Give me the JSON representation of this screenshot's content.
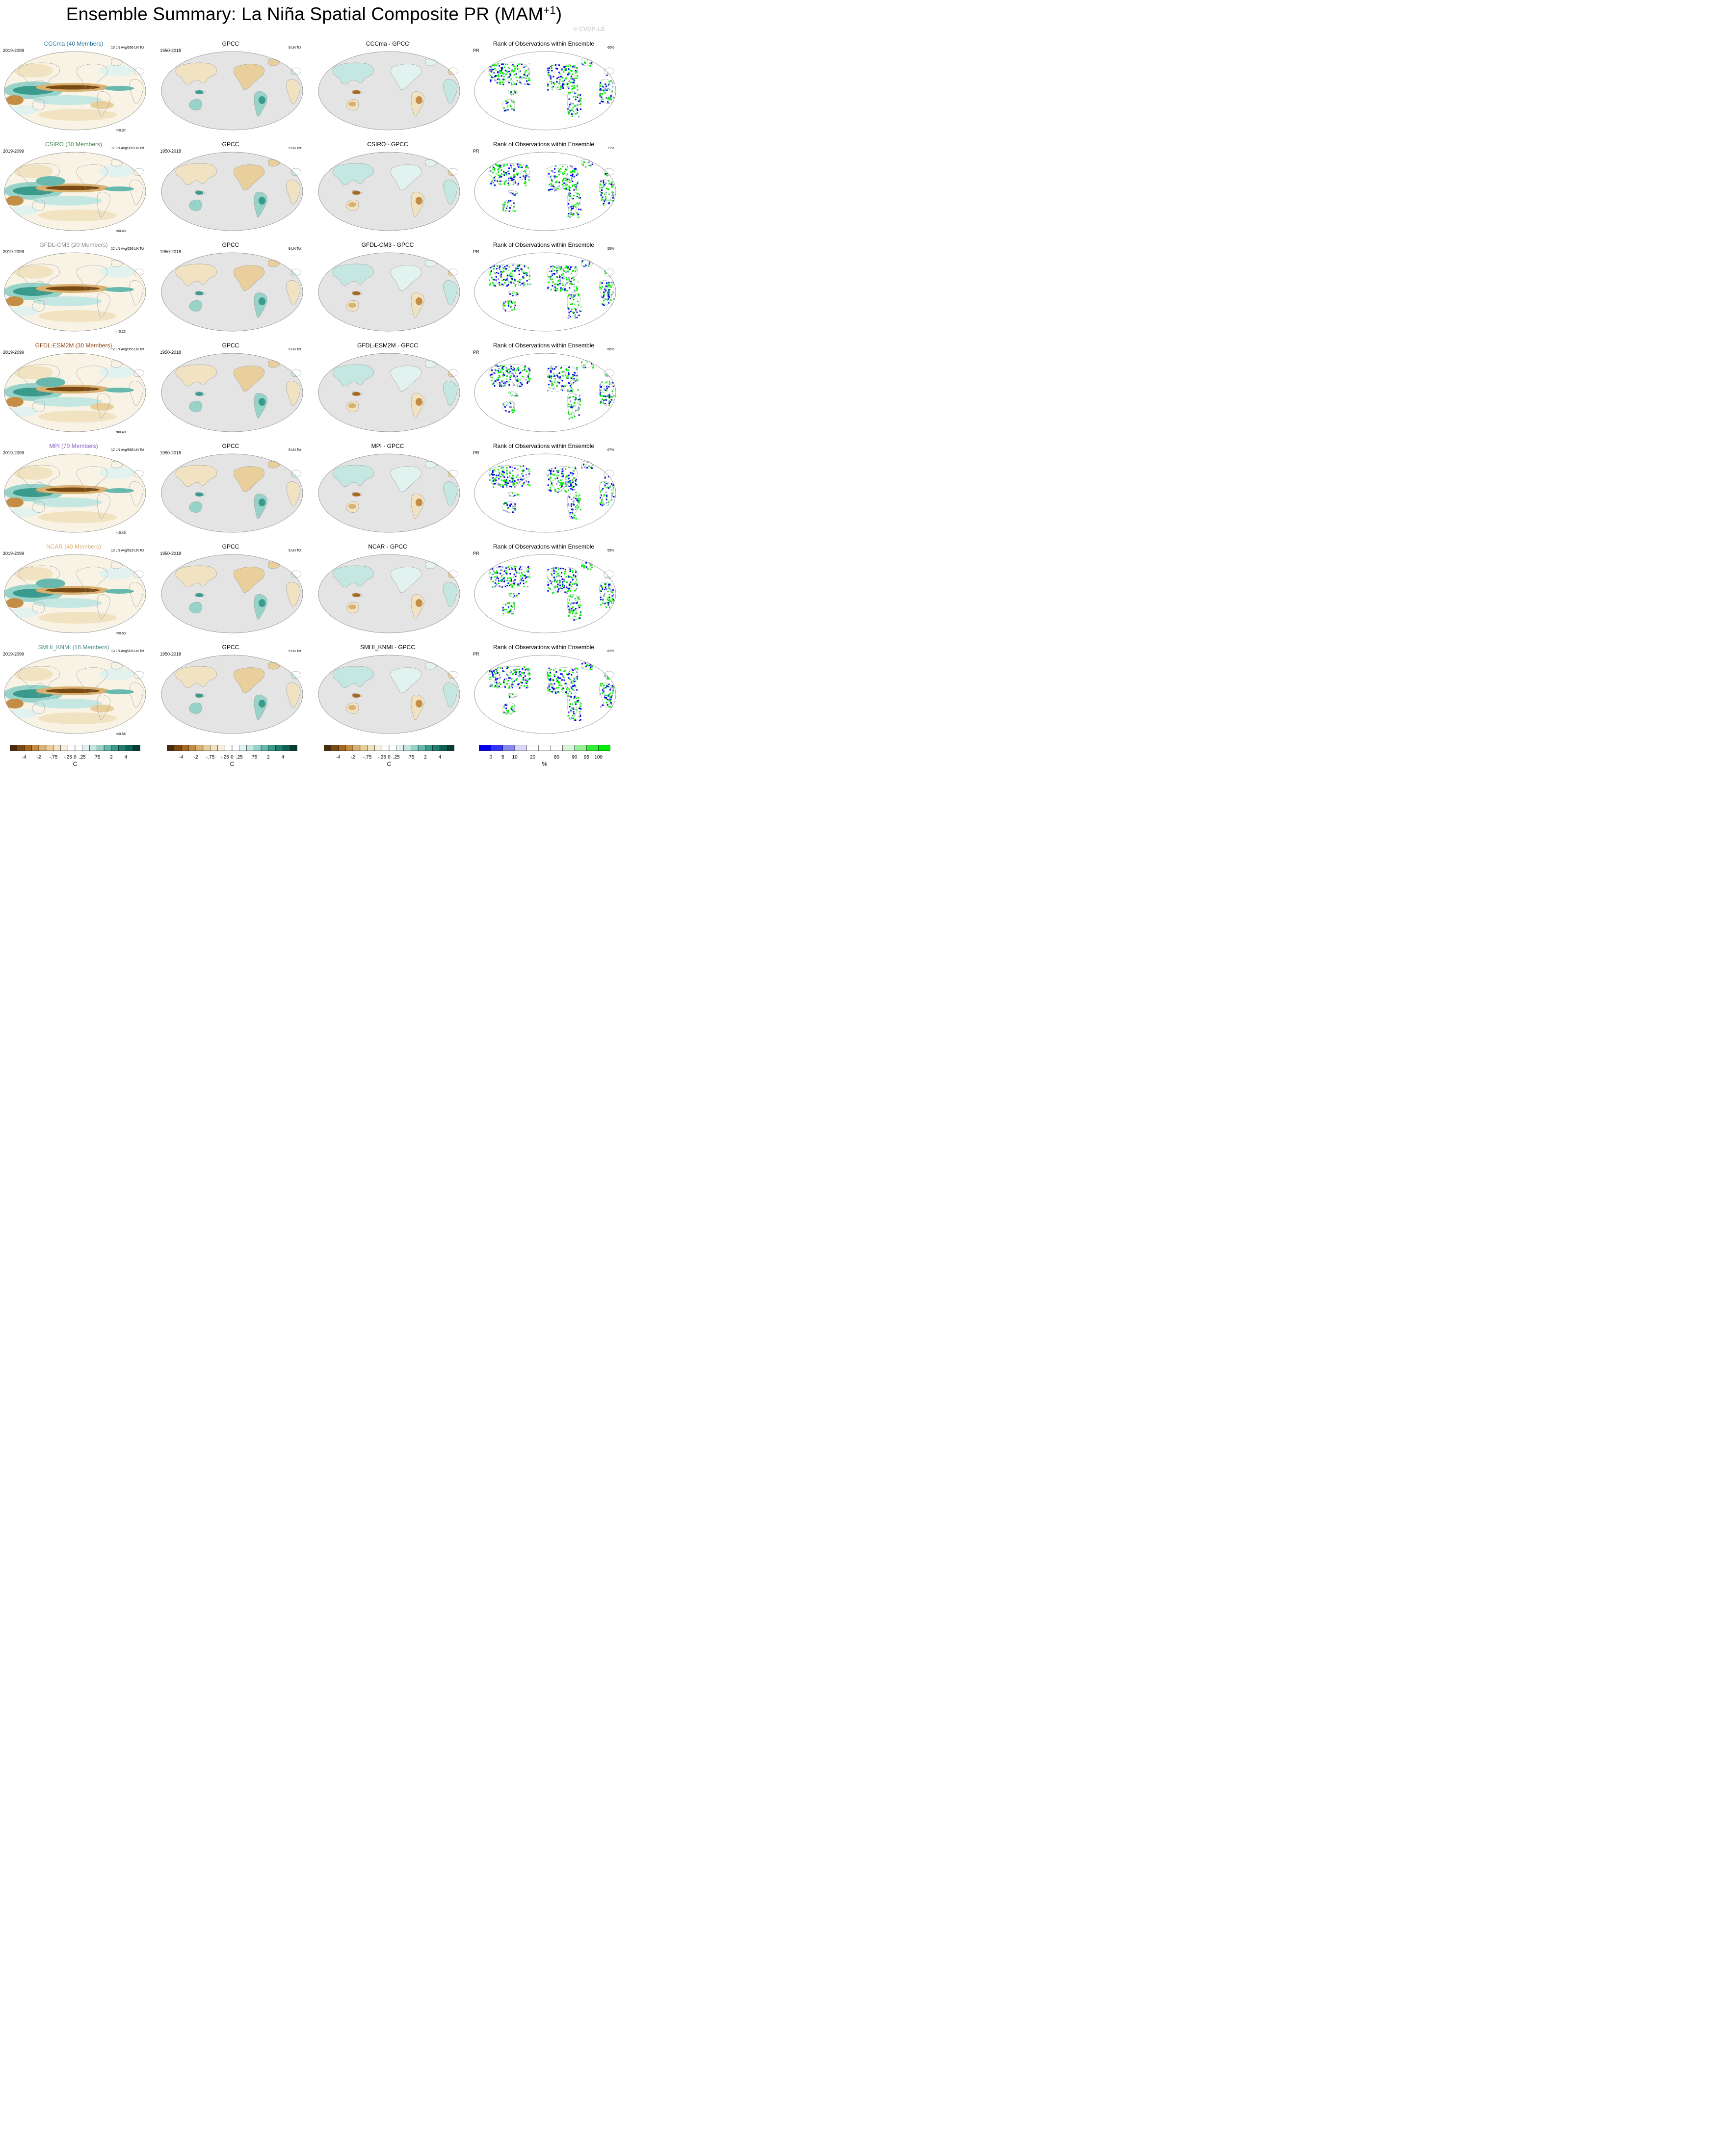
{
  "title": "Ensemble Summary: La Niña Spatial Composite PR (MAM",
  "title_sup": "+1",
  "title_close": ")",
  "watermark": "© CVDP-LE",
  "obs_name": "GPCC",
  "obs_period": "1950-2018",
  "obs_count": "9 LN Tot",
  "rank_title": "Rank of Observations within Ensemble",
  "rank_var": "PR",
  "model_period": "2019-2099",
  "rows": [
    {
      "model": "CCCma (40 Members)",
      "color": "#1f6e9a",
      "count": "13 LN Avg/536 LN Tot",
      "corr": "r=0.37",
      "diff": "CCCma - GPCC",
      "pct": "60%"
    },
    {
      "model": "CSIRO (30 Members)",
      "color": "#4d8a57",
      "count": "11 LN Avg/339 LN Tot",
      "corr": "r=0.40",
      "diff": "CSIRO - GPCC",
      "pct": "71%"
    },
    {
      "model": "GFDL-CM3 (20 Members)",
      "color": "#8a8a8a",
      "count": "12 LN Avg/236 LN Tot",
      "corr": "r=0.22",
      "diff": "GFDL-CM3 - GPCC",
      "pct": "55%"
    },
    {
      "model": "GFDL-ESM2M (30 Members)",
      "color": "#8b4513",
      "count": "12 LN Avg/355 LN Tot",
      "corr": "r=0.48",
      "diff": "GFDL-ESM2M - GPCC",
      "pct": "66%"
    },
    {
      "model": "MPI (70 Members)",
      "color": "#8a5cc7",
      "count": "12 LN Avg/838 LN Tot",
      "corr": "r=0.45",
      "diff": "MPI - GPCC",
      "pct": "67%"
    },
    {
      "model": "NCAR (40 Members)",
      "color": "#d8aa6e",
      "count": "13 LN Avg/519 LN Tot",
      "corr": "r=0.50",
      "diff": "NCAR - GPCC",
      "pct": "55%"
    },
    {
      "model": "SMHI_KNMI (16 Members)",
      "color": "#4f8f8a",
      "count": "13 LN Avg/203 LN Tot",
      "corr": "r=0.56",
      "diff": "SMHI_KNMI - GPCC",
      "pct": "62%"
    }
  ],
  "colorbar": {
    "ticks": [
      "-4",
      "-2",
      "-.75",
      "-.25",
      "0",
      ".25",
      ".75",
      "2",
      "4"
    ],
    "unit": "C",
    "colors": [
      "#4a2b0c",
      "#7a4a14",
      "#a5691f",
      "#c48d45",
      "#d9b172",
      "#e8cf9c",
      "#f1e2c1",
      "#f7f0e1",
      "#ffffff",
      "#ffffff",
      "#e2f2ef",
      "#c5e7e1",
      "#98d3c9",
      "#66b9ac",
      "#3a9b8c",
      "#1f7e6e",
      "#0e6153",
      "#053f34"
    ]
  },
  "rank_colorbar": {
    "ticks": [
      "0",
      "5",
      "10",
      "20",
      "80",
      "90",
      "95",
      "100"
    ],
    "unit": "%",
    "colors": [
      "#0000ee",
      "#3333ff",
      "#8888ee",
      "#d8d8f6",
      "#ffffff",
      "#ffffff",
      "#ffffff",
      "#d6f6d6",
      "#99ee99",
      "#33ee33",
      "#00ee00"
    ]
  }
}
